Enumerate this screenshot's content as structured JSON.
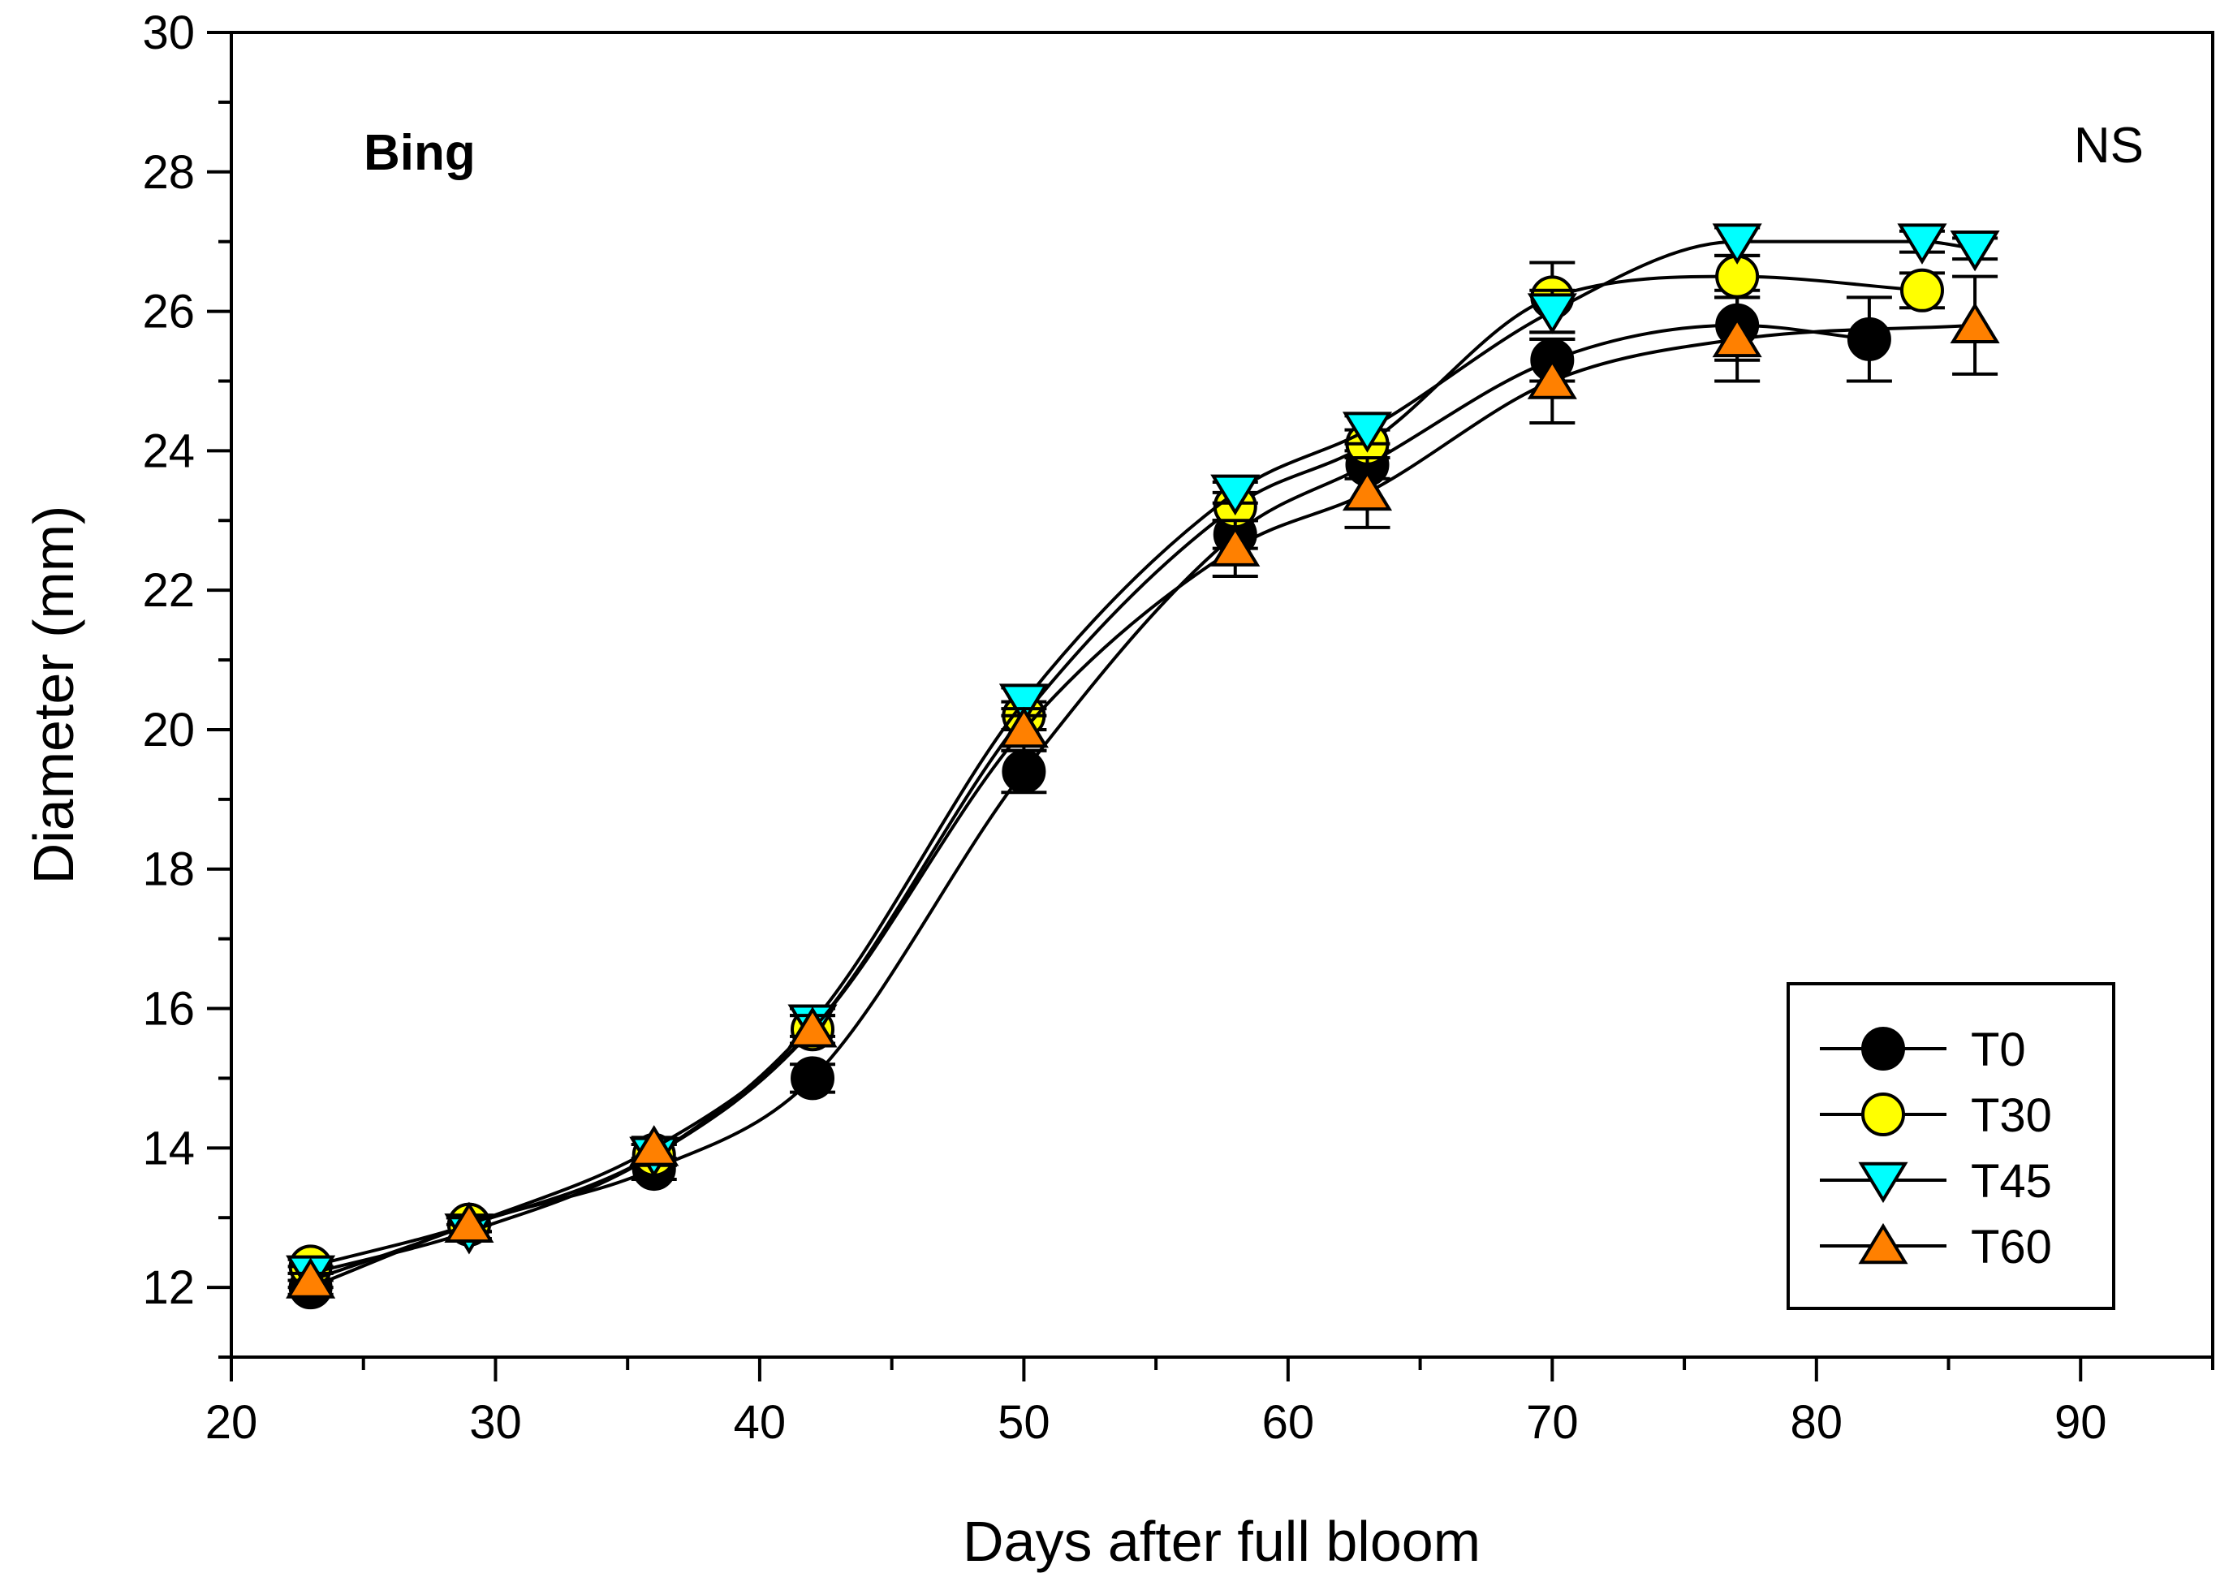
{
  "chart_data": {
    "type": "line",
    "xlabel": "Days after full bloom",
    "ylabel": "Diameter (mm)",
    "xlim": [
      20,
      95
    ],
    "ylim": [
      11,
      30
    ],
    "xticks": [
      20,
      30,
      40,
      50,
      60,
      70,
      80,
      90
    ],
    "yticks": [
      12,
      14,
      16,
      18,
      20,
      22,
      24,
      26,
      28,
      30
    ],
    "xtick_labels": [
      "20",
      "30",
      "40",
      "50",
      "60",
      "70",
      "80",
      "90"
    ],
    "ytick_labels": [
      "12",
      "14",
      "16",
      "18",
      "20",
      "22",
      "24",
      "26",
      "28",
      "30"
    ],
    "grid": false,
    "legend_position": "bottom-right",
    "annotations": [
      {
        "text": "Bing",
        "position": "top-left",
        "bold": true
      },
      {
        "text": "NS",
        "position": "top-right",
        "bold": false
      }
    ],
    "series": [
      {
        "name": "T0",
        "marker": "circle",
        "fill": "#000000",
        "x": [
          23,
          29,
          36,
          42,
          50,
          58,
          63,
          70,
          77,
          82
        ],
        "y": [
          12.0,
          12.9,
          13.7,
          15.0,
          19.4,
          22.8,
          23.8,
          25.3,
          25.8,
          25.6
        ],
        "err": [
          0.1,
          0.1,
          0.15,
          0.2,
          0.3,
          0.2,
          0.2,
          0.3,
          0.5,
          0.6
        ]
      },
      {
        "name": "T30",
        "marker": "circle",
        "fill": "#ffff00",
        "x": [
          23,
          29,
          36,
          42,
          50,
          58,
          63,
          70,
          77,
          84
        ],
        "y": [
          12.3,
          12.9,
          13.9,
          15.7,
          20.2,
          23.2,
          24.1,
          26.2,
          26.5,
          26.3
        ],
        "err": [
          0.1,
          0.1,
          0.15,
          0.2,
          0.2,
          0.2,
          0.2,
          0.5,
          0.3,
          0.25
        ]
      },
      {
        "name": "T45",
        "marker": "triangle-down",
        "fill": "#00ffff",
        "x": [
          23,
          29,
          36,
          42,
          50,
          58,
          63,
          70,
          77,
          84,
          86
        ],
        "y": [
          12.2,
          12.8,
          13.9,
          15.8,
          20.4,
          23.4,
          24.3,
          26.0,
          27.0,
          27.0,
          26.9
        ],
        "err": [
          0.1,
          0.1,
          0.15,
          0.2,
          0.2,
          0.15,
          0.2,
          0.3,
          0.2,
          0.15,
          0.15
        ]
      },
      {
        "name": "T60",
        "marker": "triangle-up",
        "fill": "#ff8000",
        "x": [
          23,
          29,
          36,
          42,
          50,
          58,
          63,
          70,
          77,
          86
        ],
        "y": [
          12.1,
          12.9,
          14.0,
          15.7,
          20.0,
          22.6,
          23.4,
          25.0,
          25.6,
          25.8
        ],
        "err": [
          0.1,
          0.1,
          0.15,
          0.2,
          0.3,
          0.4,
          0.5,
          0.6,
          0.6,
          0.7
        ]
      }
    ]
  }
}
